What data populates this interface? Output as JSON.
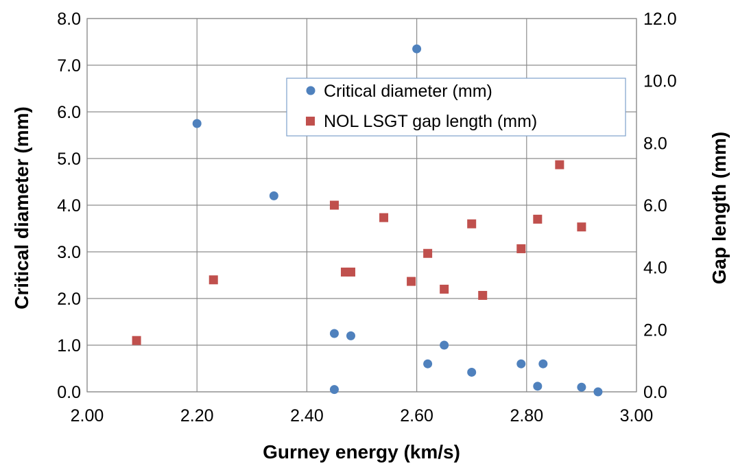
{
  "chart_data": {
    "type": "scatter",
    "xlabel": "Gurney energy  (km/s)",
    "ylabel": "Critical diameter (mm)",
    "y2label": "Gap length (mm)",
    "xlim": [
      2.0,
      3.0
    ],
    "ylim": [
      0.0,
      8.0
    ],
    "y2lim": [
      0.0,
      12.0
    ],
    "x_ticks": [
      "2.00",
      "2.20",
      "2.40",
      "2.60",
      "2.80",
      "3.00"
    ],
    "y_ticks": [
      "0.0",
      "1.0",
      "2.0",
      "3.0",
      "4.0",
      "5.0",
      "6.0",
      "7.0",
      "8.0"
    ],
    "y2_ticks": [
      "0.0",
      "2.0",
      "4.0",
      "6.0",
      "8.0",
      "10.0",
      "12.0"
    ],
    "grid": true,
    "legend_position": "top-right",
    "series": [
      {
        "name": "Critical diameter (mm)",
        "axis": "left",
        "marker": "circle",
        "color": "#4f81bd",
        "points": [
          {
            "x": 2.2,
            "y": 5.75
          },
          {
            "x": 2.34,
            "y": 4.2
          },
          {
            "x": 2.45,
            "y": 1.25
          },
          {
            "x": 2.45,
            "y": 0.05
          },
          {
            "x": 2.48,
            "y": 1.2
          },
          {
            "x": 2.6,
            "y": 7.35
          },
          {
            "x": 2.62,
            "y": 0.6
          },
          {
            "x": 2.65,
            "y": 1.0
          },
          {
            "x": 2.7,
            "y": 0.42
          },
          {
            "x": 2.79,
            "y": 0.6
          },
          {
            "x": 2.82,
            "y": 0.12
          },
          {
            "x": 2.83,
            "y": 0.6
          },
          {
            "x": 2.9,
            "y": 0.1
          },
          {
            "x": 2.93,
            "y": 0.0
          }
        ]
      },
      {
        "name": "NOL LSGT gap length (mm)",
        "axis": "right",
        "marker": "square",
        "color": "#c0504d",
        "points": [
          {
            "x": 2.09,
            "y": 1.65
          },
          {
            "x": 2.23,
            "y": 3.6
          },
          {
            "x": 2.45,
            "y": 6.0
          },
          {
            "x": 2.47,
            "y": 3.85
          },
          {
            "x": 2.48,
            "y": 3.85
          },
          {
            "x": 2.54,
            "y": 5.6
          },
          {
            "x": 2.59,
            "y": 3.55
          },
          {
            "x": 2.62,
            "y": 4.45
          },
          {
            "x": 2.65,
            "y": 3.3
          },
          {
            "x": 2.7,
            "y": 5.4
          },
          {
            "x": 2.72,
            "y": 3.1
          },
          {
            "x": 2.79,
            "y": 4.6
          },
          {
            "x": 2.82,
            "y": 5.55
          },
          {
            "x": 2.86,
            "y": 7.3
          },
          {
            "x": 2.9,
            "y": 5.3
          }
        ]
      }
    ]
  }
}
